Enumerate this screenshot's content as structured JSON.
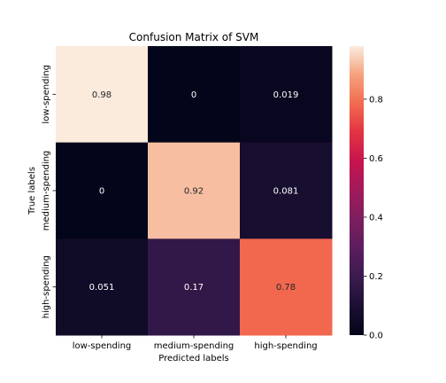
{
  "chart_data": {
    "type": "heatmap",
    "title": "Confusion Matrix of SVM",
    "xlabel": "Predicted labels",
    "ylabel": "True labels",
    "x_categories": [
      "low-spending",
      "medium-spending",
      "high-spending"
    ],
    "y_categories": [
      "low-spending",
      "medium-spending",
      "high-spending"
    ],
    "values": [
      [
        0.98,
        0,
        0.019
      ],
      [
        0,
        0.92,
        0.081
      ],
      [
        0.051,
        0.17,
        0.78
      ]
    ],
    "value_labels": [
      [
        "0.98",
        "0",
        "0.019"
      ],
      [
        "0",
        "0.92",
        "0.081"
      ],
      [
        "0.051",
        "0.17",
        "0.78"
      ]
    ],
    "colorbar": {
      "min": 0,
      "max": 0.98,
      "ticks": [
        0.0,
        0.2,
        0.4,
        0.6,
        0.8
      ],
      "tick_labels": [
        "0.0",
        "0.2",
        "0.4",
        "0.6",
        "0.8"
      ]
    },
    "colormap": "rocket"
  }
}
